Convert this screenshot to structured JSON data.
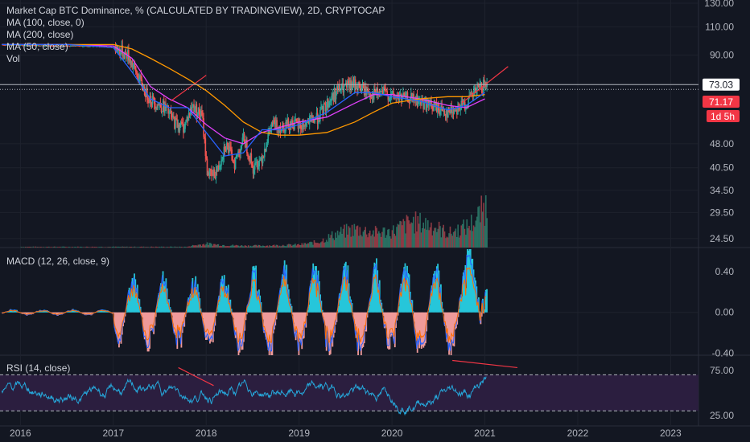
{
  "header": {
    "title": "Market Cap BTC Dominance, % (CALCULATED BY TRADINGVIEW), 2D, CRYPTOCAP",
    "studies": [
      "MA (100, close, 0)",
      "MA (200, close)",
      "MA (50, close)",
      "Vol"
    ]
  },
  "badges": {
    "last_price": "73.03",
    "ma_value": "71.17",
    "countdown": "1d 5h"
  },
  "colors": {
    "background": "#131722",
    "grid": "#1e222d",
    "pane_border": "#2a2e39",
    "candle_up": "#26a69a",
    "candle_down": "#ef5350",
    "ma100": "#e040fb",
    "ma200": "#ff9800",
    "ma50": "#2962ff",
    "macd_line": "#2962ff",
    "signal_line": "#ff6d00",
    "hist_pos": "#26c6da",
    "hist_neg": "#ef9a9a",
    "rsi_line": "#26a6d9",
    "rsi_band": "#2b1e3f",
    "badge_price": "#ffffff",
    "badge_ma": "#f23645",
    "trendline": "#f23645"
  },
  "chart_data": [
    {
      "type": "line",
      "pane": "price",
      "y_scale": "log",
      "ylim": [
        23,
        133
      ],
      "y_ticks": [
        "130.00",
        "110.00",
        "90.00",
        "73.03",
        "48.00",
        "40.50",
        "34.50",
        "29.50",
        "24.50"
      ],
      "y_tick_values": [
        130,
        110,
        90,
        73.03,
        48,
        40.5,
        34.5,
        29.5,
        24.5
      ],
      "x_ticks": [
        "2016",
        "2017",
        "2018",
        "2019",
        "2020",
        "2021",
        "2022",
        "2023"
      ],
      "x_tick_values": [
        2016.0,
        2017.0,
        2018.0,
        2019.0,
        2020.0,
        2021.0,
        2022.0,
        2023.0
      ],
      "xlim": [
        2015.78,
        2023.3
      ],
      "series": [
        {
          "name": "MA (100, close, 0)",
          "role": "ma100",
          "x": [
            2015.8,
            2016.5,
            2017.0,
            2017.2,
            2017.4,
            2017.6,
            2017.8,
            2018.0,
            2018.2,
            2018.4,
            2018.6,
            2018.8,
            2019.0,
            2019.3,
            2019.6,
            2019.8,
            2020.0,
            2020.3,
            2020.6,
            2020.8,
            2021.0
          ],
          "y": [
            97,
            97,
            96,
            88,
            72,
            66,
            62,
            55,
            50,
            48,
            52,
            54,
            56,
            58,
            64,
            68,
            68,
            66,
            63,
            62,
            66
          ]
        },
        {
          "name": "MA (200, close)",
          "role": "ma200",
          "x": [
            2015.8,
            2016.5,
            2017.0,
            2017.2,
            2017.4,
            2017.6,
            2017.8,
            2018.0,
            2018.2,
            2018.4,
            2018.6,
            2018.8,
            2019.0,
            2019.3,
            2019.6,
            2019.8,
            2020.0,
            2020.3,
            2020.6,
            2020.8,
            2021.0
          ],
          "y": [
            97,
            97,
            97,
            94,
            88,
            82,
            76,
            70,
            63,
            56,
            52,
            51,
            51,
            52,
            56,
            60,
            64,
            66,
            67,
            67,
            68
          ]
        },
        {
          "name": "MA (50, close)",
          "role": "ma50",
          "x": [
            2015.8,
            2016.5,
            2017.0,
            2017.2,
            2017.4,
            2017.6,
            2017.8,
            2018.0,
            2018.2,
            2018.4,
            2018.6,
            2018.8,
            2019.0,
            2019.3,
            2019.6,
            2019.8,
            2020.0,
            2020.3,
            2020.6,
            2020.8,
            2021.0
          ],
          "y": [
            97,
            97,
            95,
            80,
            66,
            62,
            62,
            52,
            44,
            45,
            53,
            53,
            55,
            60,
            69,
            69,
            67,
            65,
            61,
            63,
            69
          ]
        }
      ],
      "price_path": {
        "x": [
          2015.8,
          2016.3,
          2016.8,
          2017.0,
          2017.15,
          2017.25,
          2017.35,
          2017.45,
          2017.55,
          2017.65,
          2017.75,
          2017.85,
          2017.95,
          2018.0,
          2018.05,
          2018.12,
          2018.2,
          2018.3,
          2018.4,
          2018.5,
          2018.6,
          2018.7,
          2018.8,
          2018.9,
          2019.0,
          2019.2,
          2019.4,
          2019.6,
          2019.7,
          2019.8,
          2019.9,
          2020.0,
          2020.2,
          2020.4,
          2020.6,
          2020.7,
          2020.8,
          2020.9,
          2021.0
        ],
        "y": [
          97,
          96,
          96,
          95,
          90,
          78,
          68,
          64,
          62,
          56,
          54,
          63,
          58,
          40,
          38,
          40,
          48,
          42,
          50,
          40,
          44,
          55,
          54,
          56,
          54,
          58,
          70,
          73,
          70,
          68,
          69,
          67,
          66,
          63,
          60,
          62,
          64,
          70,
          73
        ]
      },
      "trendlines": [
        {
          "x": [
            2017.62,
            2018.0
          ],
          "y": [
            65,
            78
          ]
        },
        {
          "x": [
            2020.75,
            2021.25
          ],
          "y": [
            64,
            83
          ]
        }
      ],
      "volume": {
        "ylim_fraction_of_pane": 0.22,
        "x": [
          2017.8,
          2018.0,
          2018.2,
          2018.4,
          2018.6,
          2018.8,
          2019.0,
          2019.2,
          2019.4,
          2019.6,
          2019.8,
          2020.0,
          2020.2,
          2020.4,
          2020.6,
          2020.8,
          2020.9,
          2021.0
        ],
        "v": [
          0.03,
          0.08,
          0.05,
          0.04,
          0.04,
          0.05,
          0.06,
          0.12,
          0.3,
          0.4,
          0.32,
          0.35,
          0.55,
          0.5,
          0.3,
          0.45,
          0.6,
          0.9
        ]
      }
    },
    {
      "type": "bar",
      "pane": "macd",
      "title": "MACD (12, 26, close, 9)",
      "ylim": [
        -0.42,
        0.62
      ],
      "y_ticks": [
        "0.40",
        "0.00",
        "-0.40"
      ],
      "y_tick_values": [
        0.4,
        0.0,
        -0.4
      ]
    },
    {
      "type": "line",
      "pane": "rsi",
      "title": "RSI (14, close)",
      "ylim": [
        15,
        90
      ],
      "y_ticks": [
        "75.00",
        "25.00"
      ],
      "y_tick_values": [
        75,
        25
      ],
      "bands": [
        70,
        30
      ],
      "trendlines": [
        {
          "x": [
            2017.7,
            2018.08
          ],
          "y": [
            78,
            58
          ]
        },
        {
          "x": [
            2020.65,
            2021.35
          ],
          "y": [
            86,
            78
          ]
        }
      ]
    }
  ]
}
